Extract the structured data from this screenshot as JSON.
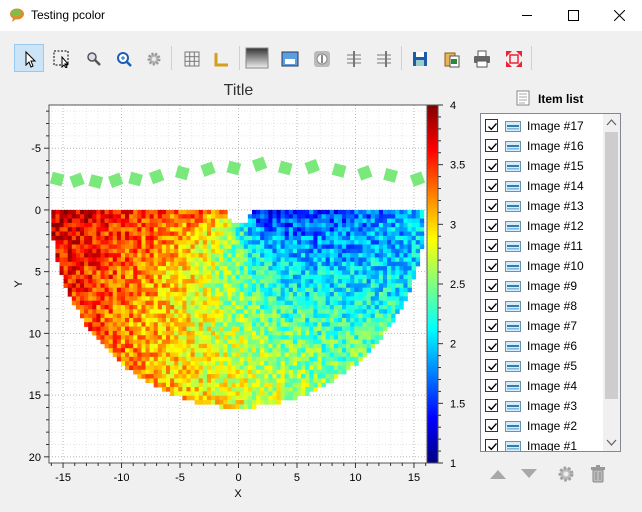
{
  "window": {
    "title": "Testing pcolor"
  },
  "toolbar": {
    "icons": [
      "select-arrow-icon",
      "rect-zoom-icon",
      "zoom-icon",
      "zoom-fit-icon",
      "settings-icon",
      "grid-icon",
      "axes-icon",
      "colormap-icon",
      "image-stats-icon",
      "contrast-icon",
      "cross-section-x-icon",
      "cross-section-y-icon",
      "save-icon",
      "copy-icon",
      "print-icon",
      "full-range-icon"
    ]
  },
  "plot": {
    "title": "Title",
    "xlabel": "X",
    "ylabel": "Y",
    "x_ticks": [
      "-15",
      "-10",
      "-5",
      "0",
      "5",
      "10",
      "15"
    ],
    "y_ticks": [
      "-5",
      "0",
      "5",
      "10",
      "15",
      "20"
    ],
    "colorbar_ticks": [
      "1",
      "1.5",
      "2",
      "2.5",
      "3",
      "3.5",
      "4"
    ],
    "markers_color": "#7ae87a"
  },
  "chart_data": {
    "type": "heatmap",
    "title": "Title",
    "xlabel": "X",
    "ylabel": "Y",
    "xlim": [
      -16.2,
      16.2
    ],
    "ylim": [
      -8.5,
      20.5
    ],
    "y_inverted": true,
    "colorbar": {
      "min": 1,
      "max": 4,
      "ticks": [
        1,
        1.5,
        2,
        2.5,
        3,
        3.5,
        4
      ],
      "colormap": "jet"
    },
    "grid": true,
    "markers_y": -2.5
  },
  "item_list": {
    "title": "Item list",
    "items": [
      {
        "label": "Image #17",
        "checked": true
      },
      {
        "label": "Image #16",
        "checked": true
      },
      {
        "label": "Image #15",
        "checked": true
      },
      {
        "label": "Image #14",
        "checked": true
      },
      {
        "label": "Image #13",
        "checked": true
      },
      {
        "label": "Image #12",
        "checked": true
      },
      {
        "label": "Image #11",
        "checked": true
      },
      {
        "label": "Image #10",
        "checked": true
      },
      {
        "label": "Image #9",
        "checked": true
      },
      {
        "label": "Image #8",
        "checked": true
      },
      {
        "label": "Image #7",
        "checked": true
      },
      {
        "label": "Image #6",
        "checked": true
      },
      {
        "label": "Image #5",
        "checked": true
      },
      {
        "label": "Image #4",
        "checked": true
      },
      {
        "label": "Image #3",
        "checked": true
      },
      {
        "label": "Image #2",
        "checked": true
      },
      {
        "label": "Image #1",
        "checked": true
      }
    ]
  }
}
